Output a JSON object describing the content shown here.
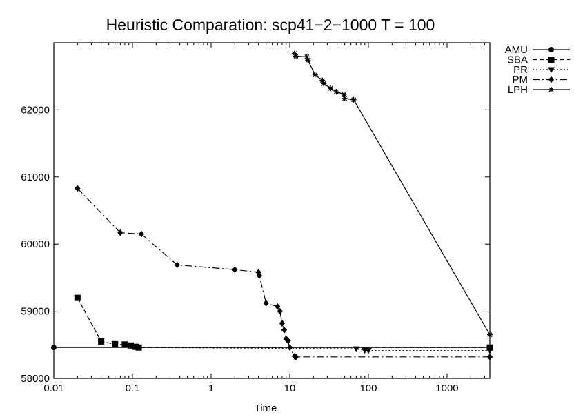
{
  "chart_data": {
    "type": "line",
    "title": "Heuristic Comparation: scp41−2−1000 T = 100",
    "xlabel": "Time",
    "ylabel": "",
    "x_scale": "log",
    "xlim": [
      0.01,
      3500
    ],
    "ylim": [
      58000,
      63000
    ],
    "x_ticks": [
      0.01,
      0.1,
      1,
      10,
      100,
      1000
    ],
    "x_tick_labels": [
      "0.01",
      "0.1",
      "1",
      "10",
      "100",
      "1000"
    ],
    "y_ticks": [
      58000,
      59000,
      60000,
      61000,
      62000
    ],
    "y_tick_labels": [
      "58000",
      "59000",
      "60000",
      "61000",
      "62000"
    ],
    "grid": false,
    "legend_position": "top-right outside",
    "series": [
      {
        "name": "AMU",
        "dash": "solid",
        "marker": "circle",
        "points": [
          [
            0.01,
            58460
          ],
          [
            3500,
            58460
          ]
        ]
      },
      {
        "name": "SBA",
        "dash": "dashed",
        "marker": "square",
        "points": [
          [
            0.02,
            59200
          ],
          [
            0.04,
            58550
          ],
          [
            0.06,
            58510
          ],
          [
            0.08,
            58505
          ],
          [
            0.095,
            58490
          ],
          [
            0.11,
            58470
          ],
          [
            0.12,
            58460
          ],
          [
            3500,
            58460
          ]
        ]
      },
      {
        "name": "PR",
        "dash": "dotted",
        "marker": "triangle-down",
        "points": [
          [
            0.02,
            59200
          ],
          [
            0.04,
            58550
          ],
          [
            0.06,
            58510
          ],
          [
            0.08,
            58505
          ],
          [
            0.095,
            58490
          ],
          [
            0.11,
            58470
          ],
          [
            0.12,
            58460
          ],
          [
            70,
            58440
          ],
          [
            90,
            58420
          ],
          [
            100,
            58415
          ],
          [
            3500,
            58415
          ]
        ]
      },
      {
        "name": "PM",
        "dash": "dashdot",
        "marker": "diamond",
        "points": [
          [
            0.02,
            60830
          ],
          [
            0.07,
            60170
          ],
          [
            0.13,
            60150
          ],
          [
            0.37,
            59690
          ],
          [
            2.0,
            59620
          ],
          [
            4.0,
            59580
          ],
          [
            4.1,
            59530
          ],
          [
            5.0,
            59120
          ],
          [
            7.0,
            59070
          ],
          [
            7.5,
            59000
          ],
          [
            8.0,
            58820
          ],
          [
            8.5,
            58720
          ],
          [
            9.0,
            58590
          ],
          [
            9.5,
            58560
          ],
          [
            10.0,
            58460
          ],
          [
            11.5,
            58330
          ],
          [
            12.0,
            58320
          ],
          [
            3500,
            58320
          ]
        ]
      },
      {
        "name": "LPH",
        "dash": "solid",
        "marker": "star",
        "points": [
          [
            11.5,
            62840
          ],
          [
            12.0,
            62800
          ],
          [
            16.5,
            62790
          ],
          [
            17.0,
            62740
          ],
          [
            21.0,
            62520
          ],
          [
            26.0,
            62440
          ],
          [
            27.0,
            62390
          ],
          [
            33.0,
            62320
          ],
          [
            39.0,
            62270
          ],
          [
            49.0,
            62230
          ],
          [
            50.0,
            62170
          ],
          [
            65.0,
            62150
          ],
          [
            3500,
            58650
          ]
        ]
      }
    ]
  }
}
